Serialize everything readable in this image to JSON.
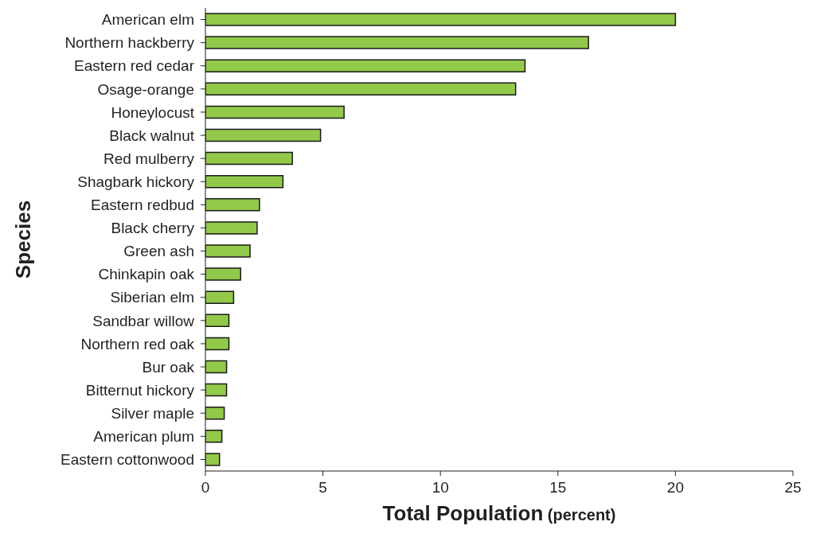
{
  "chart_data": {
    "type": "bar",
    "orientation": "horizontal",
    "xlabel": "Total Population (percent)",
    "ylabel": "Species",
    "categories": [
      "American elm",
      "Northern hackberry",
      "Eastern red cedar",
      "Osage-orange",
      "Honeylocust",
      "Black walnut",
      "Red mulberry",
      "Shagbark hickory",
      "Eastern redbud",
      "Black cherry",
      "Green ash",
      "Chinkapin oak",
      "Siberian elm",
      "Sandbar willow",
      "Northern red oak",
      "Bur oak",
      "Bitternut hickory",
      "Silver maple",
      "American plum",
      "Eastern cottonwood"
    ],
    "values": [
      20.0,
      16.3,
      13.6,
      13.2,
      5.9,
      4.9,
      3.7,
      3.3,
      2.3,
      2.2,
      1.9,
      1.5,
      1.2,
      1.0,
      1.0,
      0.9,
      0.9,
      0.8,
      0.7,
      0.6
    ],
    "color": "#92c94a",
    "xlim": [
      0,
      25
    ],
    "xticks": [
      0,
      5,
      10,
      15,
      20,
      25
    ],
    "grid": false,
    "legend": false
  }
}
